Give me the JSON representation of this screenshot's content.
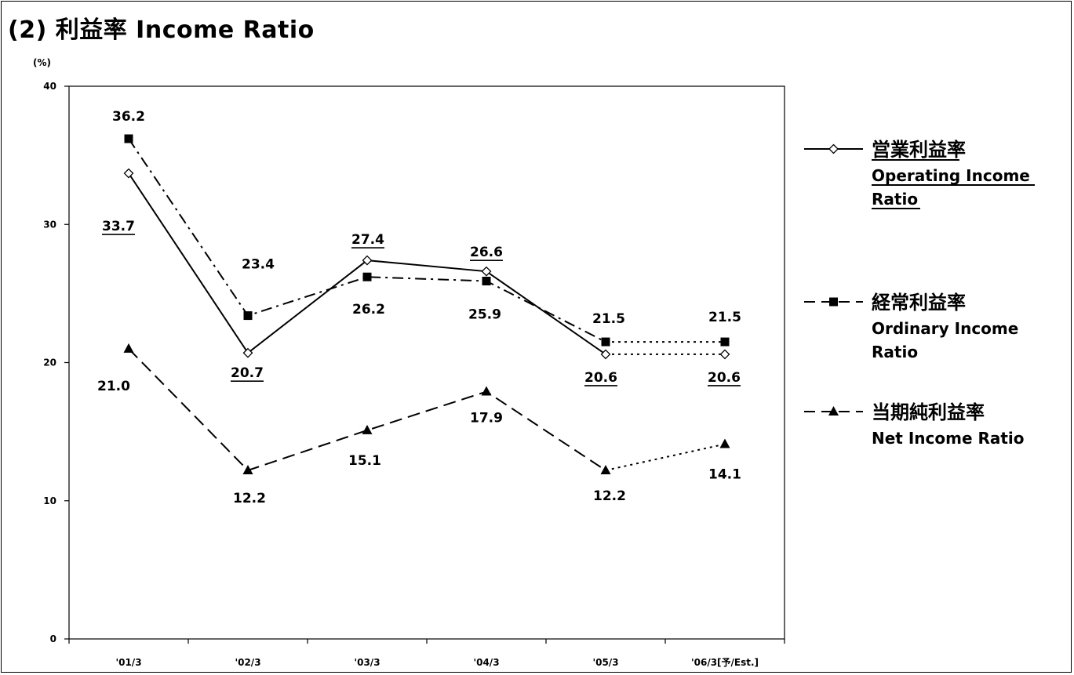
{
  "title": "(2) 利益率 Income Ratio",
  "chart_data": {
    "type": "line",
    "categories": [
      "'01/3",
      "'02/3",
      "'03/3",
      "'04/3",
      "'05/3",
      "'06/3[予/Est.]"
    ],
    "y_unit_label": "(%)",
    "ylim": [
      0,
      40
    ],
    "yticks": [
      "0",
      "10",
      "20",
      "30",
      "40"
    ],
    "grid": false,
    "legend_position": "right",
    "series": [
      {
        "key": "operating",
        "name_ja": "営業利益率",
        "name_en": "Operating Income Ratio",
        "values": [
          33.7,
          20.7,
          27.4,
          26.6,
          20.6,
          20.6
        ],
        "labels": [
          "33.7",
          "20.7",
          "27.4",
          "26.6",
          "20.6",
          "20.6"
        ],
        "marker": "diamond-open",
        "line_style": "solid",
        "forecast_line_style": "dotted",
        "labels_underlined": true
      },
      {
        "key": "ordinary",
        "name_ja": "経常利益率",
        "name_en": "Ordinary Income Ratio",
        "values": [
          36.2,
          23.4,
          26.2,
          25.9,
          21.5,
          21.5
        ],
        "labels": [
          "36.2",
          "23.4",
          "26.2",
          "25.9",
          "21.5",
          "21.5"
        ],
        "marker": "square-filled",
        "line_style": "dash-dot",
        "forecast_line_style": "dotted",
        "labels_underlined": false
      },
      {
        "key": "net",
        "name_ja": "当期純利益率",
        "name_en": "Net Income Ratio",
        "values": [
          21.0,
          12.2,
          15.1,
          17.9,
          12.2,
          14.1
        ],
        "labels": [
          "21.0",
          "12.2",
          "15.1",
          "17.9",
          "12.2",
          "14.1"
        ],
        "marker": "triangle-filled",
        "line_style": "dashed",
        "forecast_line_style": "dotted",
        "labels_underlined": false
      }
    ]
  }
}
